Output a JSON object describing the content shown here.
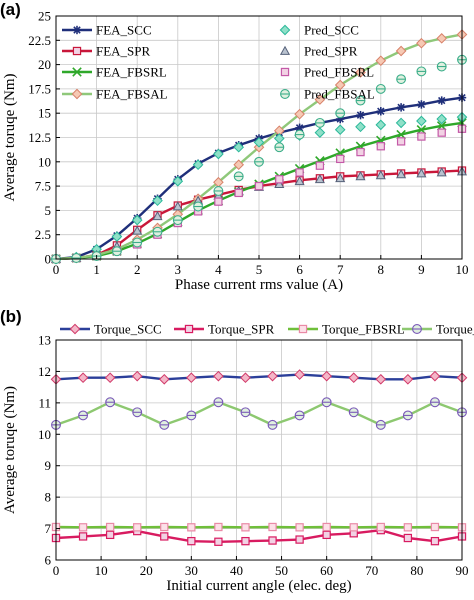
{
  "chart_data": [
    {
      "panel_label": "(a)",
      "type": "line",
      "xlabel": "Phase current rms value (A)",
      "ylabel": "Average toruqe (Nm)",
      "xlim": [
        0,
        10
      ],
      "ylim": [
        0,
        25
      ],
      "xticks": [
        "0",
        "1",
        "2",
        "3",
        "4",
        "5",
        "6",
        "7",
        "8",
        "9",
        "10"
      ],
      "yticks": [
        "0",
        "2.5",
        "5",
        "7.5",
        "10",
        "12.5",
        "15",
        "17.5",
        "20",
        "22.5",
        "25"
      ],
      "grid": true,
      "legend": "top-left",
      "x": [
        0,
        0.5,
        1,
        1.5,
        2,
        2.5,
        3,
        3.5,
        4,
        4.5,
        5,
        5.5,
        6,
        6.5,
        7,
        7.5,
        8,
        8.5,
        9,
        9.5,
        10
      ],
      "series": [
        {
          "name": "FEA_SCC",
          "style": "line-marker",
          "marker": "asterisk",
          "color": "#1f2f7a",
          "values": [
            0,
            0.2,
            1.0,
            2.4,
            4.2,
            6.2,
            8.2,
            9.8,
            10.9,
            11.7,
            12.4,
            13.0,
            13.5,
            14.0,
            14.4,
            14.8,
            15.2,
            15.6,
            15.9,
            16.3,
            16.6
          ]
        },
        {
          "name": "FEA_SPR",
          "style": "line-marker",
          "marker": "square",
          "color": "#c8173a",
          "values": [
            0,
            0.1,
            0.4,
            1.4,
            3.0,
            4.5,
            5.5,
            6.1,
            6.6,
            7.1,
            7.5,
            7.8,
            8.1,
            8.3,
            8.5,
            8.6,
            8.7,
            8.8,
            8.9,
            9.0,
            9.1
          ]
        },
        {
          "name": "FEA_FBSRL",
          "style": "line-marker",
          "marker": "x",
          "color": "#2fa82a",
          "values": [
            0,
            0.1,
            0.3,
            0.8,
            1.6,
            2.6,
            3.8,
            5.0,
            6.0,
            6.9,
            7.7,
            8.5,
            9.3,
            10.1,
            10.9,
            11.6,
            12.2,
            12.8,
            13.3,
            13.7,
            14.0
          ]
        },
        {
          "name": "FEA_FBSAL",
          "style": "line-marker",
          "marker": "diamond",
          "color": "#8fc87a",
          "values": [
            0,
            0.1,
            0.4,
            1.0,
            2.0,
            3.2,
            4.6,
            6.2,
            7.9,
            9.7,
            11.5,
            13.2,
            14.9,
            16.4,
            17.9,
            19.2,
            20.4,
            21.4,
            22.2,
            22.7,
            23.1
          ]
        },
        {
          "name": "Pred_SCC",
          "style": "marker",
          "marker": "diamond",
          "color": "#2bb89a",
          "values": [
            0,
            0.2,
            1.0,
            2.3,
            4.0,
            6.0,
            8.0,
            9.7,
            10.8,
            11.5,
            12.0,
            12.4,
            12.7,
            13.0,
            13.3,
            13.6,
            13.8,
            14.0,
            14.2,
            14.4,
            14.6
          ]
        },
        {
          "name": "Pred_SPR",
          "style": "marker",
          "marker": "triangle",
          "color": "#56627a",
          "values": [
            0,
            0.1,
            0.4,
            1.3,
            2.9,
            4.4,
            5.4,
            6.0,
            6.5,
            7.0,
            7.4,
            7.7,
            8.0,
            8.2,
            8.3,
            8.5,
            8.6,
            8.7,
            8.8,
            8.9,
            9.0
          ]
        },
        {
          "name": "Pred_FBSRL",
          "style": "marker",
          "marker": "square",
          "color": "#c45aa8",
          "values": [
            0,
            0.1,
            0.3,
            0.8,
            1.5,
            2.5,
            3.7,
            4.9,
            5.9,
            6.8,
            7.5,
            8.2,
            8.9,
            9.6,
            10.3,
            11.0,
            11.6,
            12.1,
            12.6,
            13.0,
            13.4
          ]
        },
        {
          "name": "Pred_FBSAL",
          "style": "marker",
          "marker": "circle-bar",
          "color": "#3cae8a",
          "values": [
            0,
            0.1,
            0.3,
            0.8,
            1.7,
            2.8,
            4.0,
            5.4,
            7.0,
            8.5,
            10.0,
            11.5,
            12.8,
            14.0,
            15.0,
            16.3,
            17.5,
            18.5,
            19.3,
            19.8,
            20.5
          ]
        }
      ]
    },
    {
      "panel_label": "(b)",
      "type": "line",
      "xlabel": "Initial current angle (elec. deg)",
      "ylabel": "Average toruqe (Nm)",
      "xlim": [
        0,
        90
      ],
      "ylim": [
        6,
        13
      ],
      "xticks": [
        "0",
        "10",
        "20",
        "30",
        "40",
        "50",
        "60",
        "70",
        "80",
        "90"
      ],
      "yticks": [
        "6",
        "7",
        "8",
        "9",
        "10",
        "11",
        "12",
        "13"
      ],
      "grid": true,
      "legend": "top",
      "x": [
        0,
        6,
        12,
        18,
        24,
        30,
        36,
        42,
        48,
        54,
        60,
        66,
        72,
        78,
        84,
        90
      ],
      "series": [
        {
          "name": "Torque_SCC",
          "marker": "diamond",
          "color": "#2b3f9a",
          "values": [
            11.75,
            11.8,
            11.8,
            11.85,
            11.75,
            11.8,
            11.85,
            11.8,
            11.85,
            11.9,
            11.85,
            11.8,
            11.75,
            11.75,
            11.85,
            11.8
          ]
        },
        {
          "name": "Torque_SPR",
          "marker": "square",
          "color": "#d81b60",
          "values": [
            6.7,
            6.75,
            6.8,
            6.92,
            6.75,
            6.6,
            6.58,
            6.6,
            6.62,
            6.65,
            6.8,
            6.85,
            6.95,
            6.7,
            6.6,
            6.75
          ]
        },
        {
          "name": "Torque_FBSRL",
          "marker": "square-light",
          "color": "#6fbf3a",
          "values": [
            7.05,
            7.04,
            7.05,
            7.04,
            7.05,
            7.04,
            7.05,
            7.04,
            7.05,
            7.04,
            7.05,
            7.04,
            7.05,
            7.04,
            7.05,
            7.04
          ]
        },
        {
          "name": "Torque_FBSAL",
          "marker": "circle-bar",
          "color": "#8dc870",
          "values": [
            10.3,
            10.6,
            11.02,
            10.7,
            10.3,
            10.6,
            11.02,
            10.7,
            10.3,
            10.6,
            11.02,
            10.7,
            10.3,
            10.6,
            11.02,
            10.7
          ]
        }
      ]
    }
  ]
}
